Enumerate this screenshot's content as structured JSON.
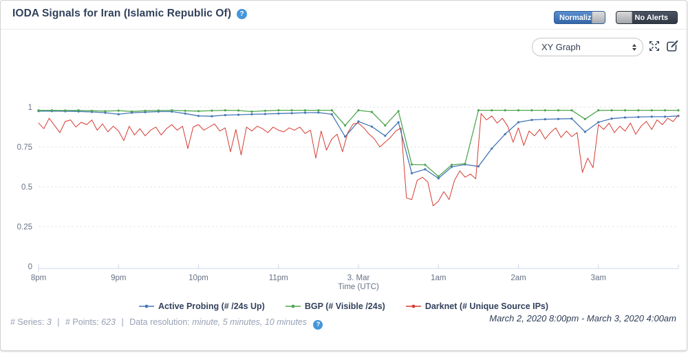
{
  "header": {
    "title": "IODA Signals for Iran (Islamic Republic Of)",
    "toggles": [
      {
        "label": "Normalized",
        "state": "on",
        "color": "#3566a7"
      },
      {
        "label": "No Alerts",
        "state": "off",
        "color": "#313946"
      }
    ]
  },
  "toolbar": {
    "graph_type_selected": "XY Graph"
  },
  "icons": {
    "question": "?"
  },
  "colors": {
    "help_badge": "#4696da",
    "axis_line": "#ccd6eb",
    "grid_line": "#e4e4e4",
    "title_text": "#31415a",
    "footer_text": "#96a0b3"
  },
  "chart_data": {
    "type": "line",
    "title": "",
    "xlabel": "Time (UTC)",
    "ylim": [
      0,
      1.05
    ],
    "x_range_minutes": [
      0,
      480
    ],
    "grid": "dashed-horizontal",
    "legend_position": "bottom",
    "x_ticks": [
      {
        "t": 0,
        "label": "8pm"
      },
      {
        "t": 60,
        "label": "9pm"
      },
      {
        "t": 120,
        "label": "10pm"
      },
      {
        "t": 180,
        "label": "11pm"
      },
      {
        "t": 240,
        "label": "3. Mar"
      },
      {
        "t": 300,
        "label": "1am"
      },
      {
        "t": 360,
        "label": "2am"
      },
      {
        "t": 420,
        "label": "3am"
      }
    ],
    "y_ticks": [
      {
        "v": 0,
        "label": "0"
      },
      {
        "v": 0.25,
        "label": "0.25"
      },
      {
        "v": 0.5,
        "label": "0.5"
      },
      {
        "v": 0.75,
        "label": "0.75"
      },
      {
        "v": 1,
        "label": "1"
      }
    ],
    "series": [
      {
        "name": "Active Probing (# /24s Up)",
        "color": "#4577b5",
        "interval_min": 10,
        "markers": true,
        "width": 1.3,
        "values": [
          0.975,
          0.975,
          0.974,
          0.973,
          0.97,
          0.965,
          0.955,
          0.965,
          0.968,
          0.972,
          0.972,
          0.96,
          0.945,
          0.943,
          0.95,
          0.952,
          0.955,
          0.957,
          0.96,
          0.962,
          0.965,
          0.966,
          0.955,
          0.815,
          0.91,
          0.878,
          0.82,
          0.905,
          0.585,
          0.61,
          0.553,
          0.625,
          0.64,
          0.628,
          0.74,
          0.83,
          0.905,
          0.92,
          0.924,
          0.926,
          0.928,
          0.845,
          0.905,
          0.928,
          0.935,
          0.938,
          0.94,
          0.94,
          0.945
        ]
      },
      {
        "name": "BGP (# Visible /24s)",
        "color": "#4fa74f",
        "interval_min": 10,
        "markers": true,
        "width": 1.3,
        "values": [
          0.98,
          0.98,
          0.979,
          0.98,
          0.977,
          0.975,
          0.978,
          0.973,
          0.977,
          0.979,
          0.98,
          0.977,
          0.975,
          0.978,
          0.98,
          0.979,
          0.972,
          0.977,
          0.98,
          0.98,
          0.98,
          0.98,
          0.98,
          0.885,
          0.98,
          0.97,
          0.885,
          0.975,
          0.64,
          0.638,
          0.565,
          0.638,
          0.645,
          0.98,
          0.98,
          0.98,
          0.98,
          0.98,
          0.98,
          0.98,
          0.98,
          0.925,
          0.98,
          0.98,
          0.98,
          0.98,
          0.98,
          0.98,
          0.98
        ]
      },
      {
        "name": "Darknet (# Unique Source IPs)",
        "color": "#d53a32",
        "interval_min": 4,
        "markers": false,
        "width": 1,
        "values": [
          0.9,
          0.865,
          0.93,
          0.885,
          0.84,
          0.91,
          0.92,
          0.875,
          0.905,
          0.89,
          0.92,
          0.855,
          0.895,
          0.845,
          0.88,
          0.85,
          0.79,
          0.88,
          0.825,
          0.865,
          0.82,
          0.855,
          0.875,
          0.825,
          0.865,
          0.89,
          0.855,
          0.88,
          0.74,
          0.875,
          0.89,
          0.855,
          0.875,
          0.895,
          0.85,
          0.87,
          0.72,
          0.86,
          0.7,
          0.875,
          0.85,
          0.88,
          0.865,
          0.84,
          0.875,
          0.855,
          0.845,
          0.87,
          0.855,
          0.875,
          0.835,
          0.855,
          0.68,
          0.85,
          0.73,
          0.8,
          0.83,
          0.72,
          0.84,
          0.895,
          0.9,
          0.87,
          0.83,
          0.8,
          0.75,
          0.78,
          0.81,
          0.85,
          0.87,
          0.43,
          0.42,
          0.54,
          0.56,
          0.53,
          0.38,
          0.41,
          0.47,
          0.42,
          0.54,
          0.6,
          0.56,
          0.58,
          0.55,
          0.96,
          0.92,
          0.945,
          0.9,
          0.93,
          0.88,
          0.78,
          0.87,
          0.76,
          0.85,
          0.82,
          0.86,
          0.8,
          0.84,
          0.87,
          0.81,
          0.85,
          0.815,
          0.84,
          0.59,
          0.68,
          0.62,
          0.89,
          0.86,
          0.9,
          0.84,
          0.88,
          0.85,
          0.9,
          0.83,
          0.88,
          0.91,
          0.86,
          0.92,
          0.89,
          0.93,
          0.91,
          0.95
        ]
      }
    ]
  },
  "footer": {
    "series_label": "# Series:",
    "series_value": "3",
    "sep": "|",
    "points_label": "# Points:",
    "points_value": "623",
    "resolution_label": "Data resolution:",
    "resolution_value": "minute, 5 minutes, 10 minutes",
    "date_range": "March 2, 2020 8:00pm - March 3, 2020 4:00am"
  }
}
